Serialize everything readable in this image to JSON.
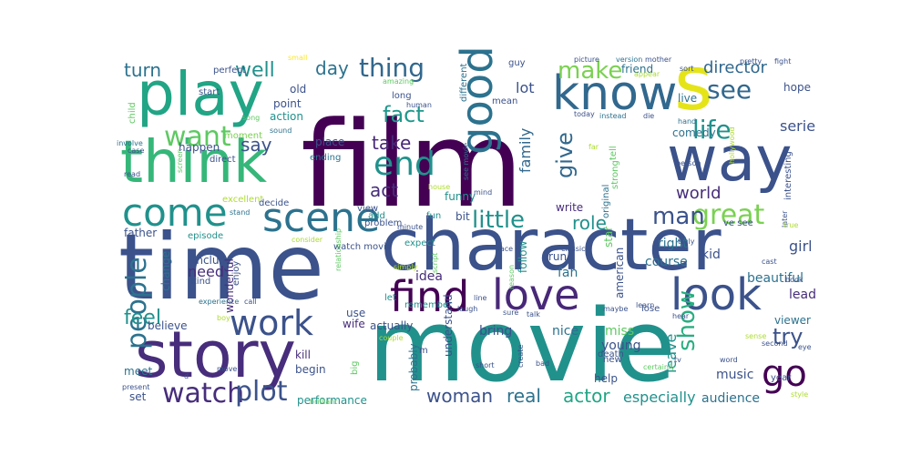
{
  "palette": {
    "darkPurple": "#440154",
    "indigo": "#472d7b",
    "slateBlue": "#3b528b",
    "steelBlue": "#2c728e",
    "teal": "#21918c",
    "green": "#28ae80",
    "lime": "#5ec962",
    "yellowGreen": "#addc30",
    "yellow": "#fde725"
  },
  "words": [
    {
      "text": "film",
      "color": "#440154"
    },
    {
      "text": "movie",
      "color": "#21918c"
    },
    {
      "text": "time",
      "color": "#3b528b"
    },
    {
      "text": "character",
      "color": "#3b528b"
    },
    {
      "text": "story",
      "color": "#472d7b"
    },
    {
      "text": "think",
      "color": "#35b779"
    },
    {
      "text": "way",
      "color": "#3b528b"
    },
    {
      "text": "s",
      "color": "#e5e419"
    },
    {
      "text": "play",
      "color": "#21a585"
    },
    {
      "text": "know",
      "color": "#31688e"
    },
    {
      "text": "good",
      "color": "#2c728e"
    },
    {
      "text": "look",
      "color": "#3b528b"
    },
    {
      "text": "love",
      "color": "#482878"
    },
    {
      "text": "find",
      "color": "#440154"
    },
    {
      "text": "scene",
      "color": "#2c728e"
    },
    {
      "text": "come",
      "color": "#21918c"
    },
    {
      "text": "work",
      "color": "#3b528b"
    },
    {
      "text": "watch",
      "color": "#472d7b"
    },
    {
      "text": "plot",
      "color": "#3b528b"
    },
    {
      "text": "go",
      "color": "#440154"
    },
    {
      "text": "people",
      "color": "#2c728e"
    },
    {
      "text": "great",
      "color": "#7ad151"
    },
    {
      "text": "end",
      "color": "#21918c"
    },
    {
      "text": "show",
      "color": "#28ae80"
    },
    {
      "text": "want",
      "color": "#5ec962"
    },
    {
      "text": "life",
      "color": "#21918c"
    },
    {
      "text": "see",
      "color": "#31688e"
    },
    {
      "text": "thing",
      "color": "#31688e"
    },
    {
      "text": "make",
      "color": "#7ad151"
    },
    {
      "text": "little",
      "color": "#21918c"
    },
    {
      "text": "man",
      "color": "#3b528b"
    },
    {
      "text": "fact",
      "color": "#1f988b"
    },
    {
      "text": "give",
      "color": "#31688e"
    },
    {
      "text": "well",
      "color": "#21918c"
    },
    {
      "text": "turn",
      "color": "#2c728e"
    },
    {
      "text": "day",
      "color": "#2c728e"
    },
    {
      "text": "director",
      "color": "#31688e"
    },
    {
      "text": "role",
      "color": "#21918c"
    },
    {
      "text": "feel",
      "color": "#21918c"
    },
    {
      "text": "try",
      "color": "#3b528b"
    },
    {
      "text": "say",
      "color": "#3b528b"
    },
    {
      "text": "take",
      "color": "#482878"
    },
    {
      "text": "act",
      "color": "#472d7b"
    },
    {
      "text": "world",
      "color": "#472d7b"
    },
    {
      "text": "woman",
      "color": "#3b528b"
    },
    {
      "text": "real",
      "color": "#2c728e"
    },
    {
      "text": "actor",
      "color": "#21a585"
    },
    {
      "text": "especially",
      "color": "#21918c"
    },
    {
      "text": "audience",
      "color": "#2c728e"
    },
    {
      "text": "need",
      "color": "#472d7b"
    },
    {
      "text": "family",
      "color": "#31688e"
    },
    {
      "text": "lot",
      "color": "#3b528b"
    },
    {
      "text": "serie",
      "color": "#3b528b"
    },
    {
      "text": "comedy",
      "color": "#2c728e"
    },
    {
      "text": "performance",
      "color": "#21918c"
    },
    {
      "text": "leave",
      "color": "#21918c"
    },
    {
      "text": "music",
      "color": "#3b528b"
    },
    {
      "text": "viewer",
      "color": "#2c728e"
    },
    {
      "text": "lead",
      "color": "#472d7b"
    },
    {
      "text": "girl",
      "color": "#3b528b"
    },
    {
      "text": "beautiful",
      "color": "#2c728e"
    },
    {
      "text": "kid",
      "color": "#3b528b"
    },
    {
      "text": "right",
      "color": "#2c728e"
    },
    {
      "text": "course",
      "color": "#2c728e"
    },
    {
      "text": "fan",
      "color": "#2c728e"
    },
    {
      "text": "follow",
      "color": "#21918c"
    },
    {
      "text": "idea",
      "color": "#472d7b"
    },
    {
      "text": "bring",
      "color": "#3b528b"
    },
    {
      "text": "young",
      "color": "#3b528b"
    },
    {
      "text": "miss",
      "color": "#5ec962"
    },
    {
      "text": "nice",
      "color": "#2c728e"
    },
    {
      "text": "understand",
      "color": "#3b528b"
    },
    {
      "text": "probably",
      "color": "#2c728e"
    },
    {
      "text": "actually",
      "color": "#3b528b"
    },
    {
      "text": "believe",
      "color": "#3b528b"
    },
    {
      "text": "happen",
      "color": "#3b528b"
    },
    {
      "text": "include",
      "color": "#3b528b"
    },
    {
      "text": "wonderful",
      "color": "#472d7b"
    },
    {
      "text": "kill",
      "color": "#472d7b"
    },
    {
      "text": "begin",
      "color": "#3b528b"
    },
    {
      "text": "wife",
      "color": "#472d7b"
    },
    {
      "text": "use",
      "color": "#3b528b"
    },
    {
      "text": "meet",
      "color": "#2c728e"
    },
    {
      "text": "set",
      "color": "#3b528b"
    },
    {
      "text": "father",
      "color": "#3b528b"
    },
    {
      "text": "change",
      "color": "#2c728e"
    },
    {
      "text": "enjoy",
      "color": "#3b528b"
    },
    {
      "text": "episode",
      "color": "#21918c"
    },
    {
      "text": "expect",
      "color": "#21918c"
    },
    {
      "text": "funny",
      "color": "#21918c"
    },
    {
      "text": "write",
      "color": "#472d7b"
    },
    {
      "text": "original",
      "color": "#2c728e"
    },
    {
      "text": "run",
      "color": "#3b528b"
    },
    {
      "text": "american",
      "color": "#3b528b"
    },
    {
      "text": "star",
      "color": "#5ec962"
    },
    {
      "text": "interesting",
      "color": "#3b528b"
    },
    {
      "text": "hope",
      "color": "#3b528b"
    },
    {
      "text": "live",
      "color": "#2c728e"
    },
    {
      "text": "friend",
      "color": "#2c728e"
    },
    {
      "text": "guy",
      "color": "#3b528b"
    },
    {
      "text": "old",
      "color": "#3b528b"
    },
    {
      "text": "point",
      "color": "#3b528b"
    },
    {
      "text": "action",
      "color": "#21918c"
    },
    {
      "text": "long",
      "color": "#3b528b"
    },
    {
      "text": "place",
      "color": "#3b528b"
    },
    {
      "text": "mean",
      "color": "#3b528b"
    },
    {
      "text": "different",
      "color": "#2c728e"
    },
    {
      "text": "perfect",
      "color": "#3b528b"
    },
    {
      "text": "start",
      "color": "#3b528b"
    },
    {
      "text": "moment",
      "color": "#7ad151"
    },
    {
      "text": "child",
      "color": "#5ec962"
    },
    {
      "text": "direct",
      "color": "#3b528b"
    },
    {
      "text": "ending",
      "color": "#2c728e"
    },
    {
      "text": "bit",
      "color": "#3b528b"
    },
    {
      "text": "fun",
      "color": "#21918c"
    },
    {
      "text": "add",
      "color": "#21918c"
    },
    {
      "text": "view",
      "color": "#3b528b"
    },
    {
      "text": "problem",
      "color": "#3b528b"
    },
    {
      "text": "excellent",
      "color": "#addc30"
    },
    {
      "text": "decide",
      "color": "#3b528b"
    },
    {
      "text": "stand",
      "color": "#2c728e"
    },
    {
      "text": "consider",
      "color": "#addc30"
    },
    {
      "text": "watch movie",
      "color": "#3b528b"
    },
    {
      "text": "minute",
      "color": "#3b528b"
    },
    {
      "text": "see movie",
      "color": "#2c728e"
    },
    {
      "text": "mind",
      "color": "#3b528b"
    },
    {
      "text": "strong",
      "color": "#5ec962"
    },
    {
      "text": "tell",
      "color": "#5ec962"
    },
    {
      "text": "far",
      "color": "#addc30"
    },
    {
      "text": "today",
      "color": "#3b528b"
    },
    {
      "text": "instead",
      "color": "#2c728e"
    },
    {
      "text": "die",
      "color": "#3b528b"
    },
    {
      "text": "human",
      "color": "#3b528b"
    },
    {
      "text": "picture",
      "color": "#3b528b"
    },
    {
      "text": "version",
      "color": "#2c728e"
    },
    {
      "text": "mother",
      "color": "#3b528b"
    },
    {
      "text": "appear",
      "color": "#addc30"
    },
    {
      "text": "sort",
      "color": "#3b528b"
    },
    {
      "text": "pretty",
      "color": "#3b528b"
    },
    {
      "text": "fight",
      "color": "#3b528b"
    },
    {
      "text": "small",
      "color": "#fde725"
    },
    {
      "text": "amazing",
      "color": "#5ec962"
    },
    {
      "text": "song",
      "color": "#5ec962"
    },
    {
      "text": "sound",
      "color": "#2c728e"
    },
    {
      "text": "hand",
      "color": "#2c728e"
    },
    {
      "text": "case",
      "color": "#3b528b"
    },
    {
      "text": "involve",
      "color": "#2c728e"
    },
    {
      "text": "read",
      "color": "#3b528b"
    },
    {
      "text": "screen",
      "color": "#5ec962"
    },
    {
      "text": "house",
      "color": "#addc30"
    },
    {
      "text": "person",
      "color": "#3b528b"
    },
    {
      "text": "hollywood",
      "color": "#addc30"
    },
    {
      "text": "later",
      "color": "#3b528b"
    },
    {
      "text": "true",
      "color": "#addc30"
    },
    {
      "text": "truly",
      "color": "#3b528b"
    },
    {
      "text": "cast",
      "color": "#3b528b"
    },
    {
      "text": "classic",
      "color": "#3b528b"
    },
    {
      "text": "face",
      "color": "#3b528b"
    },
    {
      "text": "simply",
      "color": "#addc30"
    },
    {
      "text": "script",
      "color": "#5ec962"
    },
    {
      "text": "relationship",
      "color": "#5ec962"
    },
    {
      "text": "remember",
      "color": "#21918c"
    },
    {
      "text": "let",
      "color": "#21918c"
    },
    {
      "text": "reason",
      "color": "#5ec962"
    },
    {
      "text": "sure",
      "color": "#3b528b"
    },
    {
      "text": "talk",
      "color": "#3b528b"
    },
    {
      "text": "maybe",
      "color": "#3b528b"
    },
    {
      "text": "learn",
      "color": "#3b528b"
    },
    {
      "text": "hear",
      "color": "#3b528b"
    },
    {
      "text": "book",
      "color": "#3b528b"
    },
    {
      "text": "line",
      "color": "#3b528b"
    },
    {
      "text": "laugh",
      "color": "#3b528b"
    },
    {
      "text": "death",
      "color": "#3b528b"
    },
    {
      "text": "help",
      "color": "#3b528b"
    },
    {
      "text": "tv",
      "color": "#3b528b"
    },
    {
      "text": "word",
      "color": "#3b528b"
    },
    {
      "text": "sense",
      "color": "#addc30"
    },
    {
      "text": "second",
      "color": "#3b528b"
    },
    {
      "text": "year",
      "color": "#3b528b"
    },
    {
      "text": "eye",
      "color": "#3b528b"
    },
    {
      "text": "style",
      "color": "#addc30"
    },
    {
      "text": "certainly",
      "color": "#5ec962"
    },
    {
      "text": "create",
      "color": "#3b528b"
    },
    {
      "text": "short",
      "color": "#3b528b"
    },
    {
      "text": "bad",
      "color": "#3b528b"
    },
    {
      "text": "lose",
      "color": "#3b528b"
    },
    {
      "text": "big",
      "color": "#5ec962"
    },
    {
      "text": "m",
      "color": "#3b528b"
    },
    {
      "text": "d",
      "color": "#3b528b"
    },
    {
      "text": "ve see",
      "color": "#3b528b"
    },
    {
      "text": "couple",
      "color": "#addc30"
    },
    {
      "text": "experience",
      "color": "#2c728e"
    },
    {
      "text": "call",
      "color": "#3b528b"
    },
    {
      "text": "boy",
      "color": "#addc30"
    },
    {
      "text": "move",
      "color": "#3b528b"
    },
    {
      "text": "present",
      "color": "#3b528b"
    },
    {
      "text": "brilliant",
      "color": "#5ec962"
    },
    {
      "text": "kind",
      "color": "#3b528b"
    },
    {
      "text": "new",
      "color": "#3b528b"
    }
  ]
}
